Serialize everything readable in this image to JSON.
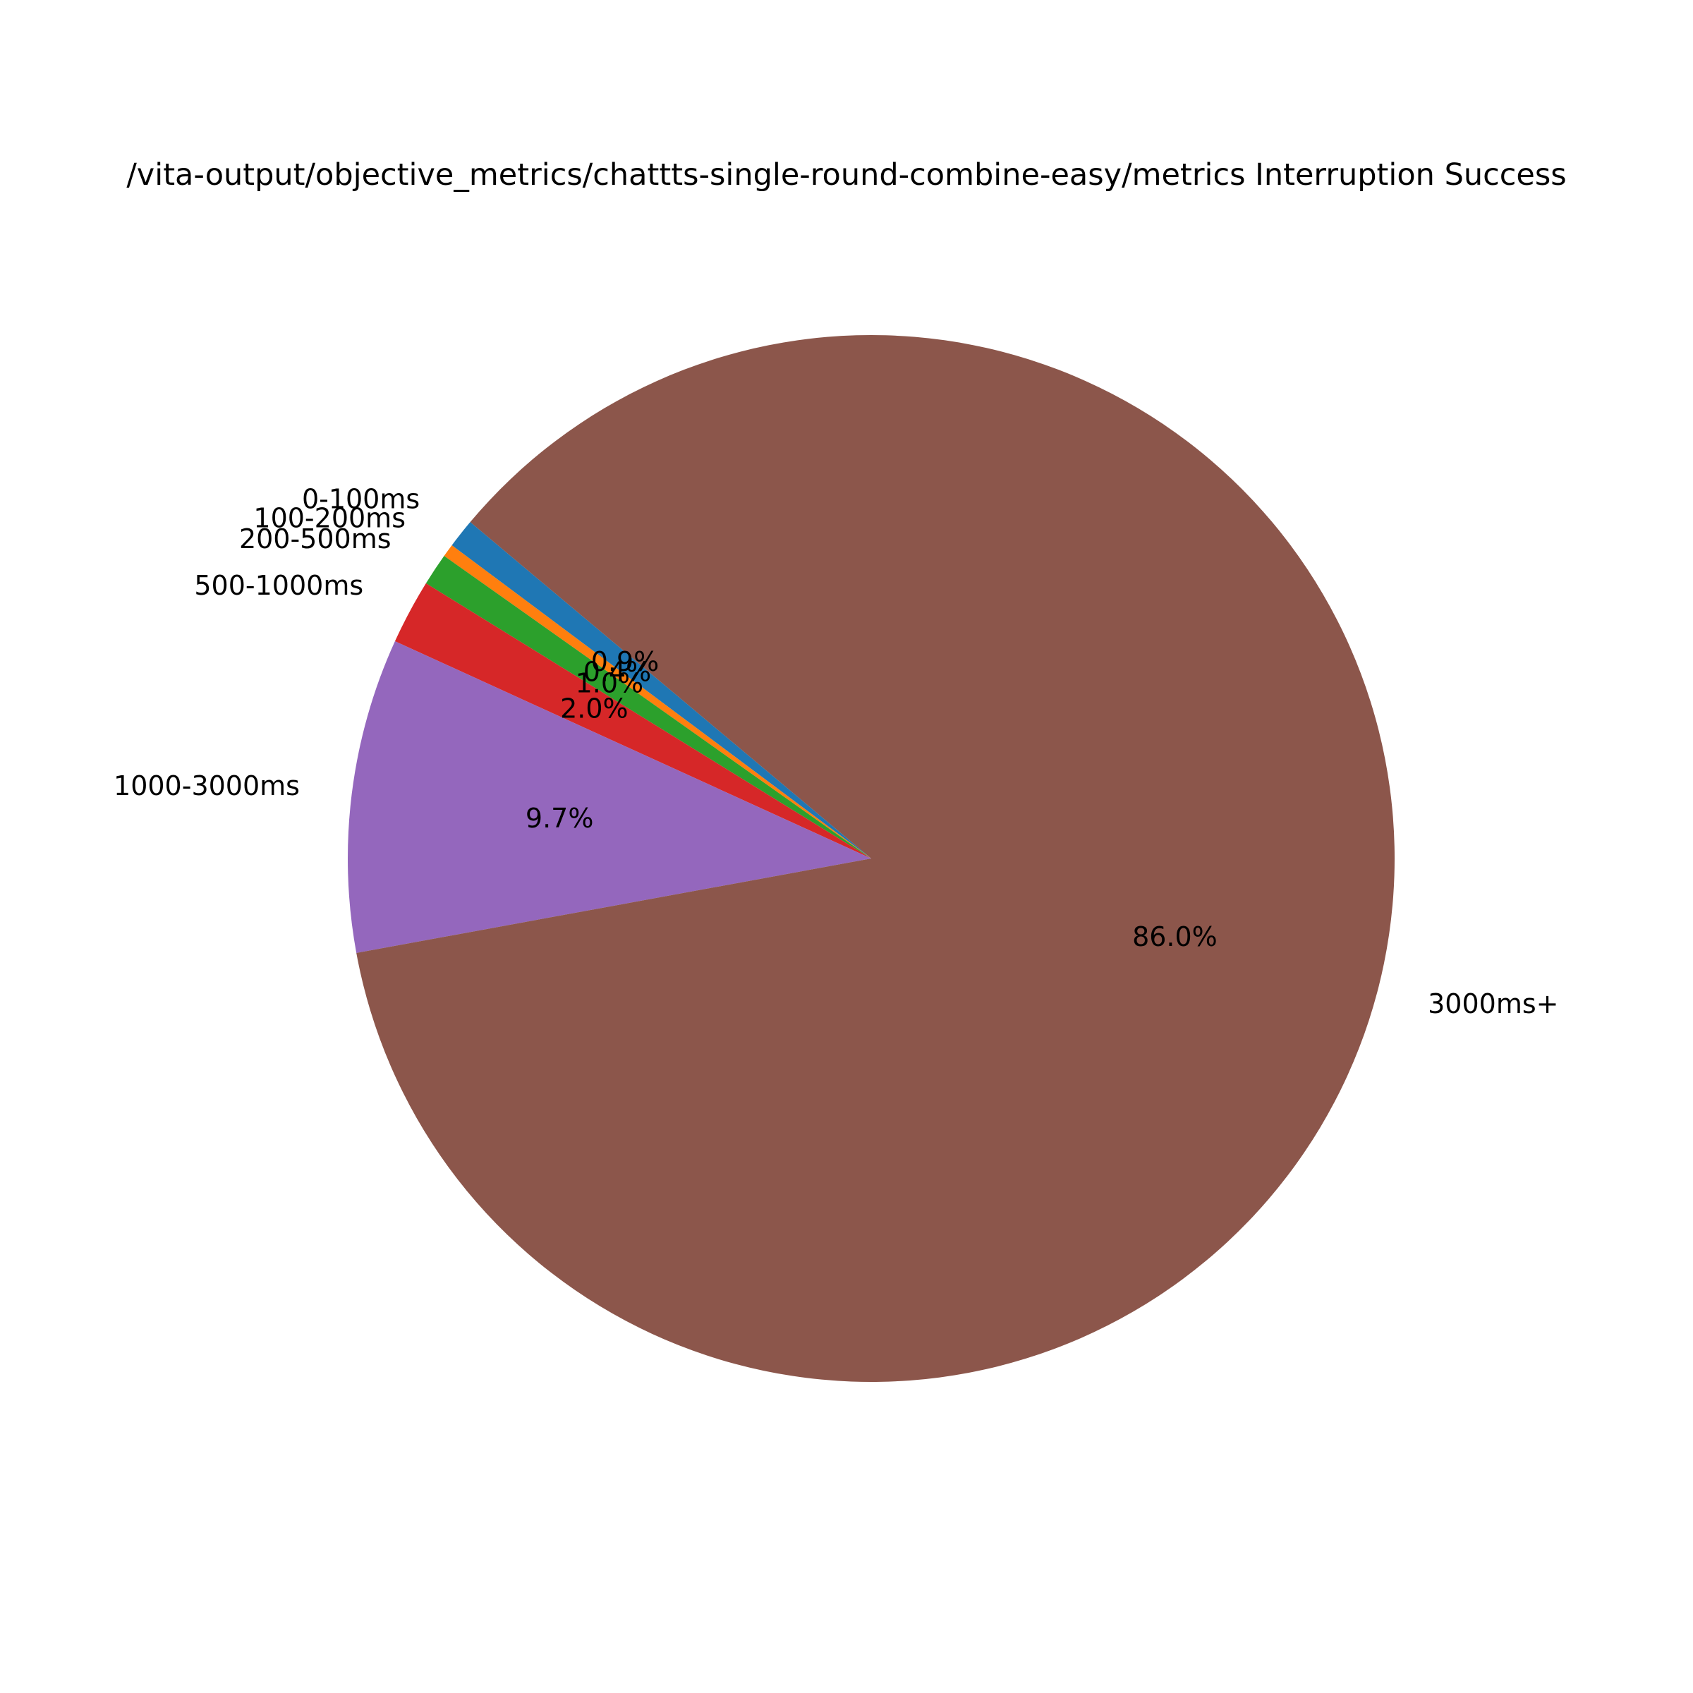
{
  "chart_data": {
    "type": "pie",
    "title": "/vita-output/objective_metrics/chattts-single-round-combine-easy/metrics Interruption Success",
    "start_angle_deg": 140,
    "direction": "counterclockwise",
    "slices": [
      {
        "label": "0-100ms",
        "value": 0.9,
        "pct_label": "0.9%",
        "color": "#1f77b4"
      },
      {
        "label": "100-200ms",
        "value": 0.4,
        "pct_label": "0.4%",
        "color": "#ff7f0e"
      },
      {
        "label": "200-500ms",
        "value": 1.0,
        "pct_label": "1.0%",
        "color": "#2ca02c"
      },
      {
        "label": "500-1000ms",
        "value": 2.0,
        "pct_label": "2.0%",
        "color": "#d62728"
      },
      {
        "label": "1000-3000ms",
        "value": 9.7,
        "pct_label": "9.7%",
        "color": "#9467bd"
      },
      {
        "label": "3000ms+",
        "value": 86.0,
        "pct_label": "86.0%",
        "color": "#8c564b"
      }
    ]
  }
}
